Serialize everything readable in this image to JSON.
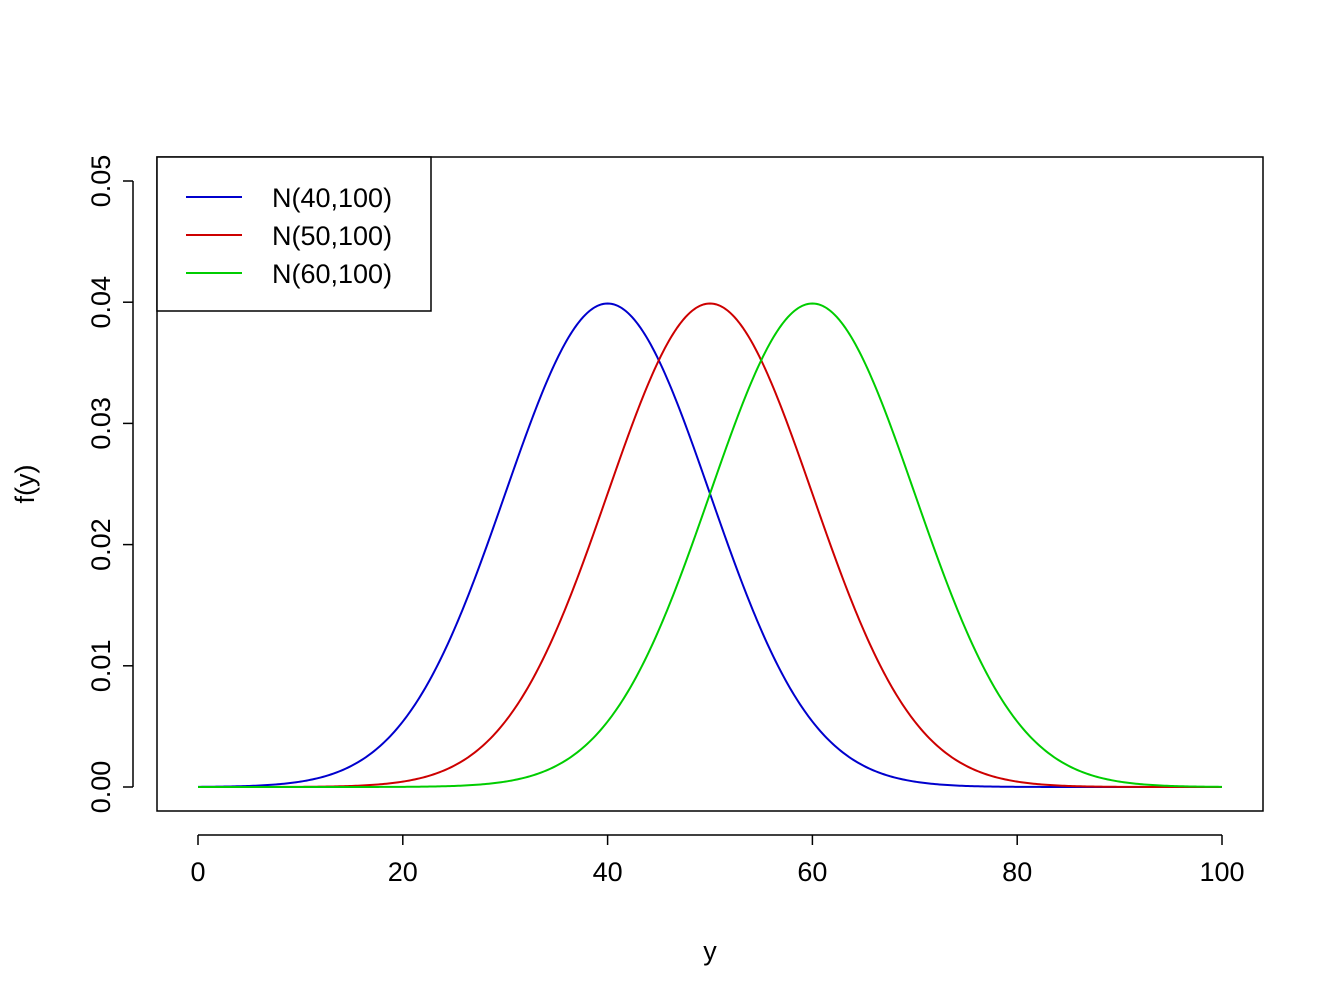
{
  "chart_data": {
    "type": "line",
    "xlabel": "y",
    "ylabel": "f(y)",
    "xlim": [
      0,
      100
    ],
    "ylim": [
      0,
      0.05
    ],
    "x_ticks": [
      0,
      20,
      40,
      60,
      80,
      100
    ],
    "y_ticks": [
      0,
      0.01,
      0.02,
      0.03,
      0.04,
      0.05
    ],
    "x_tick_labels": [
      "0",
      "20",
      "40",
      "60",
      "80",
      "100"
    ],
    "y_tick_labels": [
      "0.00",
      "0.01",
      "0.02",
      "0.03",
      "0.04",
      "0.05"
    ],
    "grid": false,
    "legend_position": "top-left",
    "series": [
      {
        "name": "N(40,100)",
        "distribution": "normal",
        "mean": 40,
        "variance": 100,
        "color": "#0000CD"
      },
      {
        "name": "N(50,100)",
        "distribution": "normal",
        "mean": 50,
        "variance": 100,
        "color": "#CD0000"
      },
      {
        "name": "N(60,100)",
        "distribution": "normal",
        "mean": 60,
        "variance": 100,
        "color": "#00CD00"
      }
    ]
  }
}
